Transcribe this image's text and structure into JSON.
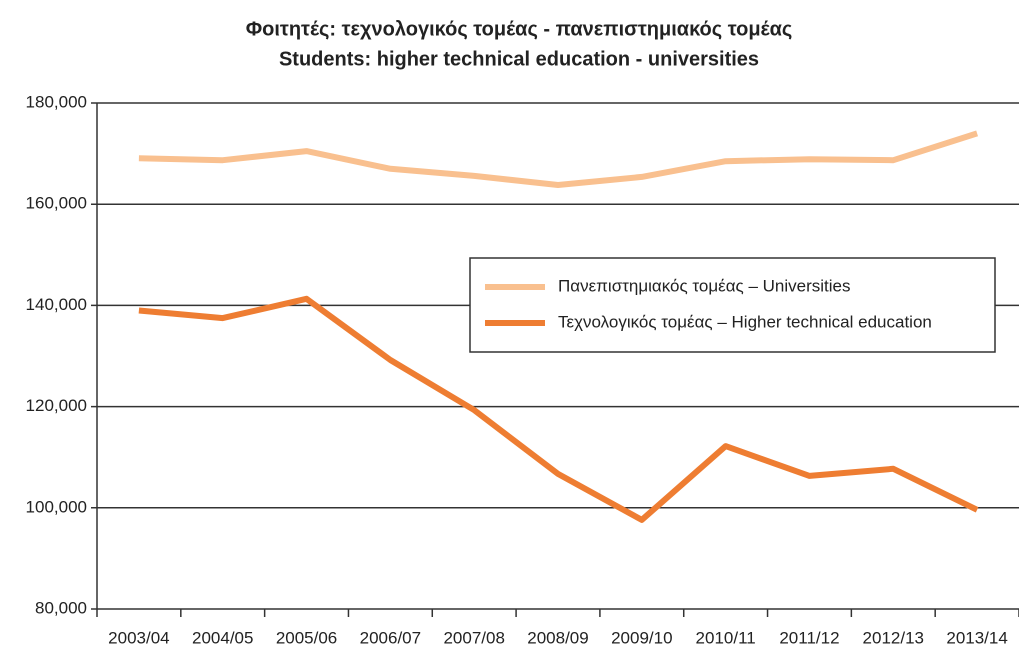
{
  "chart_data": {
    "type": "line",
    "title": "Φοιτητές: τεχνολογικός τομέας - πανεπιστημιακός τομέας",
    "subtitle": "Students: higher technical education - universities",
    "categories": [
      "2003/04",
      "2004/05",
      "2005/06",
      "2006/07",
      "2007/08",
      "2008/09",
      "2009/10",
      "2010/11",
      "2011/12",
      "2012/13",
      "2013/14"
    ],
    "series": [
      {
        "name": "Πανεπιστημιακός τομέας – Universities",
        "color": "#f9c08f",
        "values": [
          169100,
          168700,
          170500,
          167000,
          165600,
          163800,
          165400,
          168500,
          168900,
          168700,
          174000
        ]
      },
      {
        "name": "Τεχνολογικός τομέας – Higher technical education",
        "color": "#ee7d32",
        "values": [
          139000,
          137500,
          141300,
          129200,
          119300,
          106700,
          97600,
          112200,
          106300,
          107700,
          99600
        ]
      }
    ],
    "ylim": [
      80000,
      180000
    ],
    "yticks": [
      {
        "value": 80000,
        "label": "80,000"
      },
      {
        "value": 100000,
        "label": "100,000"
      },
      {
        "value": 120000,
        "label": "120,000"
      },
      {
        "value": 140000,
        "label": "140,000"
      },
      {
        "value": 160000,
        "label": "160,000"
      },
      {
        "value": 180000,
        "label": "180,000"
      }
    ],
    "grid": true
  }
}
